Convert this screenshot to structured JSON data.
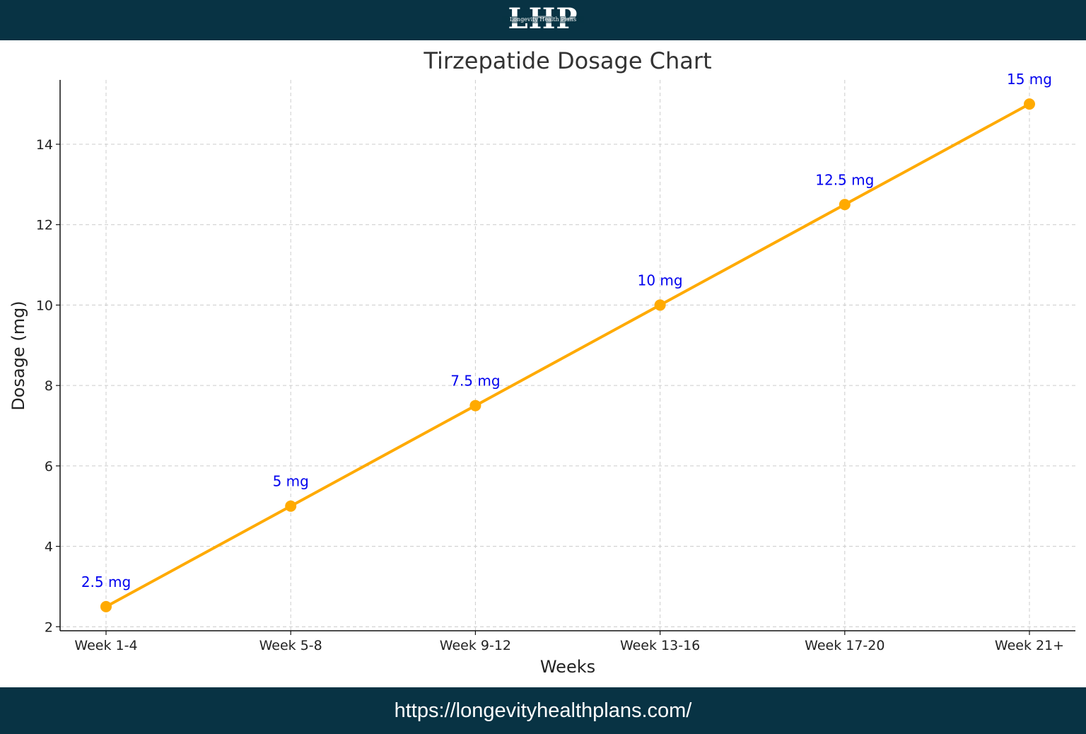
{
  "header": {
    "logo_letters": "LHP",
    "logo_subtitle": "Longevity Health Plans"
  },
  "footer": {
    "url": "https://longevityhealthplans.com/"
  },
  "colors": {
    "bar": "#083344",
    "line": "#ffaa00",
    "label": "#0000ee",
    "grid": "#cccccc"
  },
  "chart_data": {
    "type": "line",
    "title": "Tirzepatide Dosage Chart",
    "xlabel": "Weeks",
    "ylabel": "Dosage (mg)",
    "categories": [
      "Week 1-4",
      "Week 5-8",
      "Week 9-12",
      "Week 13-16",
      "Week 17-20",
      "Week 21+"
    ],
    "series": [
      {
        "values": [
          2.5,
          5,
          7.5,
          10,
          12.5,
          15
        ]
      }
    ],
    "data_labels": [
      "2.5 mg",
      "5 mg",
      "7.5 mg",
      "10 mg",
      "12.5 mg",
      "15 mg"
    ],
    "yticks": [
      2,
      4,
      6,
      8,
      10,
      12,
      14
    ],
    "ylim": [
      1.9,
      15.6
    ],
    "grid": true,
    "legend": "none"
  }
}
